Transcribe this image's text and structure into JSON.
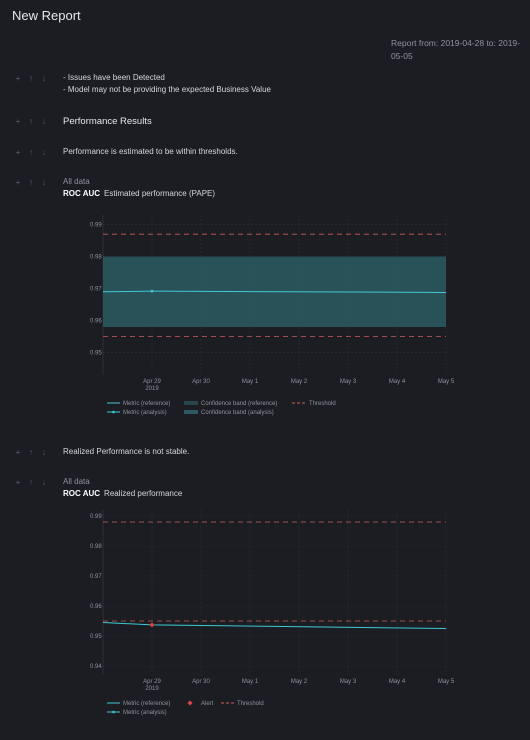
{
  "report": {
    "title": "New Report",
    "date_range": "Report from: 2019-04-28 to: 2019-05-05"
  },
  "controls": {
    "add": "+",
    "up": "↑",
    "down": "↓"
  },
  "blocks": {
    "issues": [
      "- Issues have been Detected",
      "- Model may not be providing the expected Business Value"
    ],
    "performance_results": "Performance Results",
    "estimated_note": "Performance is estimated to be within thresholds.",
    "realized_note": "Realized Performance is not stable."
  },
  "charts": {
    "estimated": {
      "subset": "All data",
      "metric": "ROC AUC",
      "caption": "Estimated performance (PAPE)",
      "legend": [
        "Metric (reference)",
        "Confidence band (reference)",
        "Threshold",
        "Metric (analysis)",
        "Confidence band (analysis)"
      ]
    },
    "realized": {
      "subset": "All data",
      "metric": "ROC AUC",
      "caption": "Realized performance",
      "legend": [
        "Metric (reference)",
        "Alert",
        "Threshold",
        "Metric (analysis)"
      ]
    }
  },
  "chart_data": [
    {
      "type": "line",
      "x_ticks": [
        "Apr 29",
        "Apr 30",
        "May 1",
        "May 2",
        "May 3",
        "May 4",
        "May 5"
      ],
      "x_tick_year": "2019",
      "xlim": [
        "2019-04-28",
        "2019-05-05"
      ],
      "ylim": [
        0.943,
        0.993
      ],
      "y_ticks": [
        0.95,
        0.96,
        0.97,
        0.98,
        0.99
      ],
      "y_tick_labels": [
        "0.95",
        "0.96",
        "0.97",
        "0.98",
        "0.99"
      ],
      "threshold": [
        0.955,
        0.987
      ],
      "confidence_band": {
        "x": [
          "2019-04-28",
          "2019-05-05"
        ],
        "lower": [
          0.958,
          0.958
        ],
        "upper": [
          0.98,
          0.98
        ]
      },
      "series": [
        {
          "name": "Metric (analysis)",
          "x": [
            "2019-04-28",
            "2019-04-29",
            "2019-05-05"
          ],
          "y": [
            0.969,
            0.9692,
            0.9688
          ]
        }
      ],
      "grid": true,
      "legend_position": "bottom"
    },
    {
      "type": "line",
      "x_ticks": [
        "Apr 29",
        "Apr 30",
        "May 1",
        "May 2",
        "May 3",
        "May 4",
        "May 5"
      ],
      "x_tick_year": "2019",
      "xlim": [
        "2019-04-28",
        "2019-05-05"
      ],
      "ylim": [
        0.937,
        0.992
      ],
      "y_ticks": [
        0.94,
        0.95,
        0.96,
        0.97,
        0.98,
        0.99
      ],
      "y_tick_labels": [
        "0.94",
        "0.95",
        "0.96",
        "0.97",
        "0.98",
        "0.99"
      ],
      "threshold": [
        0.955,
        0.988
      ],
      "series": [
        {
          "name": "Metric (analysis)",
          "x": [
            "2019-04-28",
            "2019-04-29",
            "2019-05-05"
          ],
          "y": [
            0.9545,
            0.9537,
            0.9525
          ]
        }
      ],
      "alerts": [
        {
          "x": "2019-04-29",
          "y": 0.9537
        }
      ],
      "grid": true,
      "legend_position": "bottom"
    }
  ],
  "colors": {
    "background": "#1b1d22",
    "metric_line": "#3fc8d6",
    "band_analysis": "#2b5a62",
    "band_reference": "#25464c",
    "threshold": "#d05a5a",
    "alert": "#e04444",
    "grid": "#2c2f35"
  }
}
